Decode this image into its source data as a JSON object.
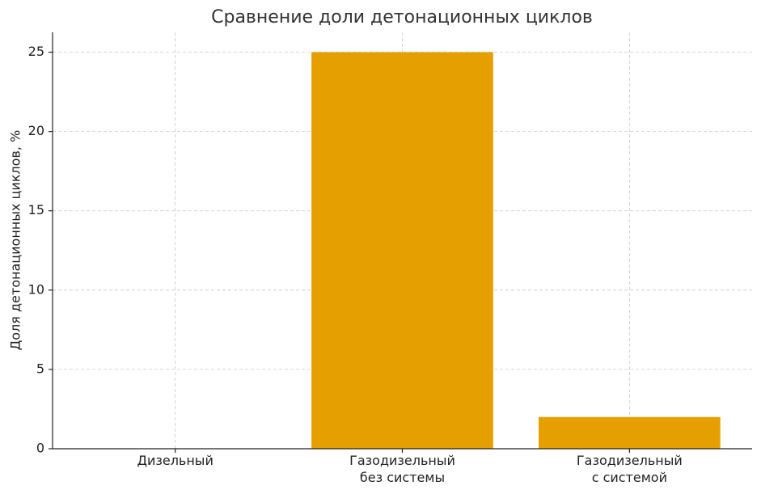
{
  "chart_data": {
    "type": "bar",
    "title": "Сравнение доли детонационных циклов",
    "ylabel": "Доля детонационных циклов, %",
    "categories": [
      "Дизельный",
      "Газодизельный\nбез системы",
      "Газодизельный\nс системой"
    ],
    "values": [
      0,
      25,
      2
    ],
    "color": "#e69f00",
    "ylim": [
      0,
      26.25
    ],
    "yticks": [
      0,
      5,
      10,
      15,
      20,
      25
    ],
    "grid": true
  }
}
